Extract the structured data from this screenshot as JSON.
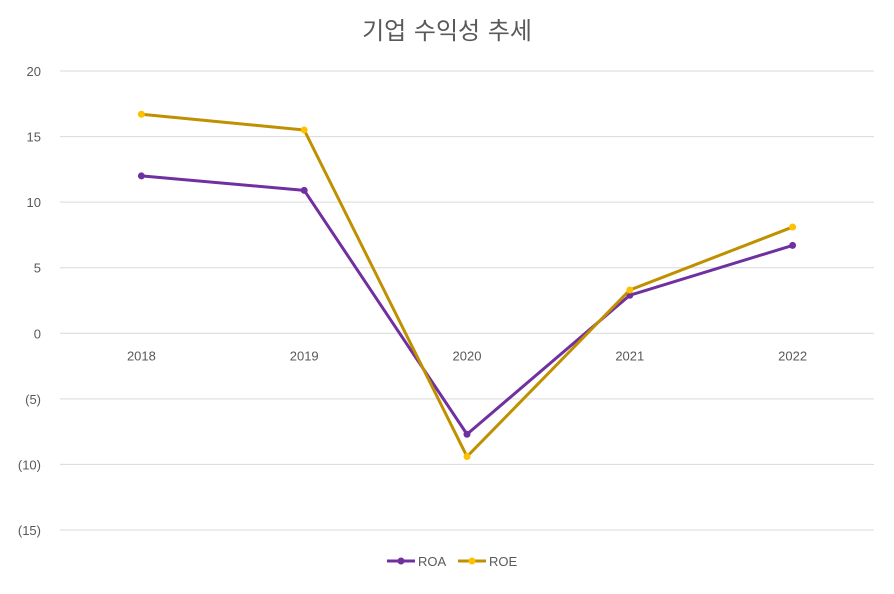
{
  "chart_data": {
    "type": "line",
    "title": "기업 수익성 추세",
    "xlabel": "",
    "ylabel": "",
    "categories": [
      "2018",
      "2019",
      "2020",
      "2021",
      "2022"
    ],
    "ylim": [
      -15,
      20
    ],
    "y_ticks": [
      20,
      15,
      10,
      5,
      0,
      -5,
      -10,
      -15
    ],
    "y_tick_labels": [
      "20",
      "15",
      "10",
      "5",
      "0",
      "(5)",
      "(10)",
      "(15)"
    ],
    "grid": true,
    "legend_position": "bottom",
    "series": [
      {
        "name": "ROA",
        "color": "#7030a0",
        "values": [
          12.0,
          10.9,
          -7.7,
          2.9,
          6.7
        ]
      },
      {
        "name": "ROE",
        "color": "#bf9000",
        "marker_color": "#ffc000",
        "values": [
          16.7,
          15.5,
          -9.4,
          3.3,
          8.1
        ]
      }
    ]
  }
}
